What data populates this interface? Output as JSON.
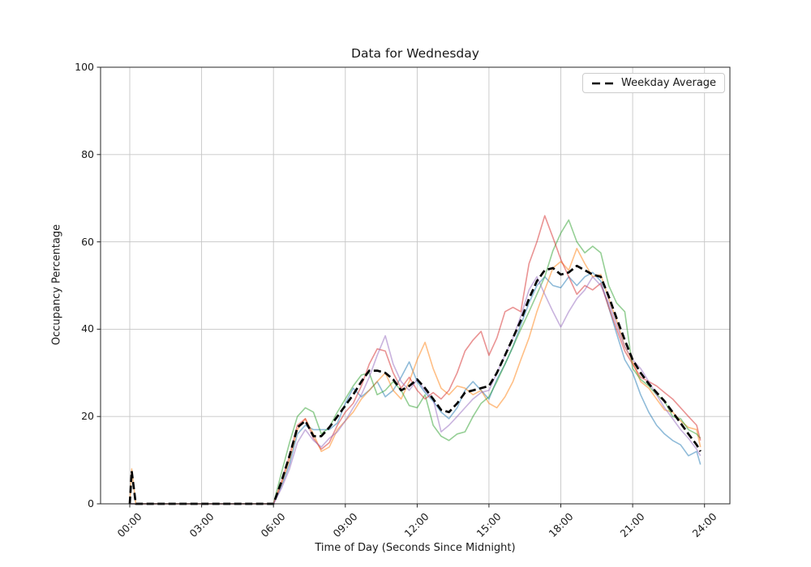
{
  "figure": {
    "background_color": "#ffffff",
    "text_color": "#1a1a1a",
    "grid_color": "#c6c6c6",
    "spine_color": "#262626"
  },
  "chart_data": {
    "type": "line",
    "title": "Data for Wednesday",
    "xlabel": "Time of Day (Seconds Since Midnight)",
    "ylabel": "Occupancy Percentage",
    "grid": true,
    "legend_position": "upper right",
    "legend_label": "Weekday Average",
    "xlim_hours": [
      -1.22,
      25.06
    ],
    "ylim": [
      0,
      100
    ],
    "y_ticks": [
      0,
      20,
      40,
      60,
      80,
      100
    ],
    "x_ticks": [
      {
        "hour": 0,
        "label": "00:00"
      },
      {
        "hour": 3,
        "label": "03:00"
      },
      {
        "hour": 6,
        "label": "06:00"
      },
      {
        "hour": 9,
        "label": "09:00"
      },
      {
        "hour": 12,
        "label": "12:00"
      },
      {
        "hour": 15,
        "label": "15:00"
      },
      {
        "hour": 18,
        "label": "18:00"
      },
      {
        "hour": 21,
        "label": "21:00"
      },
      {
        "hour": 24,
        "label": "24:00"
      }
    ],
    "x_hours": [
      0,
      0.08,
      0.25,
      3,
      6,
      6.33,
      6.67,
      7,
      7.33,
      7.67,
      8,
      8.33,
      8.67,
      9,
      9.33,
      9.67,
      10,
      10.33,
      10.67,
      11,
      11.33,
      11.67,
      12,
      12.33,
      12.67,
      13,
      13.33,
      13.67,
      14,
      14.33,
      14.67,
      15,
      15.33,
      15.67,
      16,
      16.33,
      16.67,
      17,
      17.33,
      17.67,
      18,
      18.33,
      18.67,
      19,
      19.33,
      19.67,
      20,
      20.33,
      20.67,
      21,
      21.33,
      21.67,
      22,
      22.33,
      22.67,
      23,
      23.33,
      23.67,
      23.83
    ],
    "series": [
      {
        "name": "series-1",
        "color": "#1f77b4",
        "opacity": 0.5,
        "width": 1.6,
        "dash": null,
        "y": [
          0,
          0,
          0,
          0,
          0,
          4,
          9,
          16,
          18,
          17,
          17,
          17,
          18.5,
          23,
          26.5,
          24.5,
          26,
          28,
          24.5,
          26,
          29,
          32.5,
          28,
          25.5,
          23.5,
          21,
          19.5,
          22,
          26,
          28,
          26,
          24,
          28.5,
          32,
          36,
          41,
          46,
          50,
          52,
          50,
          49.5,
          52,
          50,
          52,
          53,
          51,
          45,
          39,
          33,
          30,
          25,
          21,
          18,
          16,
          14.5,
          13.5,
          11,
          12,
          9
        ]
      },
      {
        "name": "series-2",
        "color": "#ff7f0e",
        "opacity": 0.5,
        "width": 1.6,
        "dash": null,
        "y": [
          0,
          8,
          0,
          0,
          0,
          4.5,
          10,
          17,
          19.5,
          16,
          12,
          13,
          17,
          19,
          21,
          24,
          26,
          28,
          30,
          26,
          24,
          28,
          33,
          37,
          31,
          26.5,
          25,
          27,
          26.5,
          25,
          26,
          23,
          22,
          24.5,
          28,
          33,
          38,
          44,
          49,
          54,
          55.5,
          53.5,
          58.5,
          55,
          52,
          52.5,
          47,
          42,
          36,
          32.5,
          28,
          26.5,
          24,
          21.5,
          21,
          19,
          17.5,
          17,
          13
        ]
      },
      {
        "name": "series-3",
        "color": "#2ca02c",
        "opacity": 0.5,
        "width": 1.6,
        "dash": null,
        "y": [
          0,
          0,
          0,
          0,
          0,
          7,
          14,
          20,
          22,
          21,
          16,
          17.5,
          21,
          24,
          27,
          29.5,
          30,
          25,
          26,
          28,
          26,
          22.5,
          22,
          25,
          18,
          15.5,
          14.5,
          16,
          16.5,
          20,
          23,
          24.5,
          28,
          32,
          36,
          40,
          44,
          48,
          52,
          58,
          62,
          65,
          60,
          57.5,
          59,
          57.5,
          50,
          46,
          44,
          31,
          28.5,
          27,
          25,
          23.5,
          20,
          19.5,
          17,
          16,
          15
        ]
      },
      {
        "name": "series-4",
        "color": "#d62728",
        "opacity": 0.5,
        "width": 1.6,
        "dash": null,
        "y": [
          0,
          0,
          0,
          0,
          0,
          5,
          11,
          18,
          19.5,
          15,
          12.5,
          14,
          18,
          21,
          23,
          27,
          32,
          35.5,
          35,
          30,
          26.5,
          29,
          26,
          24,
          25.5,
          24,
          26,
          30,
          35,
          37.5,
          39.5,
          34,
          38,
          44,
          45,
          44,
          55,
          60,
          66,
          61,
          56,
          52,
          48,
          50,
          49,
          50.5,
          45,
          40,
          35,
          32,
          29,
          28,
          27,
          25.5,
          24,
          22,
          20,
          18,
          14.5
        ]
      },
      {
        "name": "series-5",
        "color": "#9467bd",
        "opacity": 0.5,
        "width": 1.6,
        "dash": null,
        "y": [
          0,
          0,
          0,
          0,
          0,
          3.5,
          8,
          14,
          17,
          14.5,
          13,
          15,
          16.5,
          19,
          22,
          25,
          29,
          34,
          38.5,
          32,
          28,
          26,
          28.5,
          26,
          24,
          16.5,
          18,
          20,
          22,
          24,
          25.5,
          26,
          30,
          34,
          38,
          43,
          49,
          52,
          48,
          44,
          40.5,
          44,
          47,
          49,
          52,
          50,
          46,
          41,
          36,
          33,
          31,
          28,
          25,
          22,
          19.5,
          17,
          15,
          12.5,
          11
        ]
      },
      {
        "name": "Weekday Average",
        "color": "#000000",
        "opacity": 1,
        "width": 2.7,
        "dash": "9 4.5",
        "y": [
          0,
          7.5,
          0,
          0,
          0,
          5,
          11,
          17.5,
          19,
          15.5,
          15.5,
          17.5,
          20,
          22.5,
          25,
          28,
          30.5,
          30.5,
          30,
          28.5,
          26,
          27,
          28.5,
          26.5,
          24,
          21.5,
          21,
          23,
          25.5,
          26,
          26.5,
          27,
          30,
          34,
          38,
          42,
          47,
          51,
          53.5,
          54,
          52.5,
          53,
          54.5,
          53.5,
          52.5,
          52,
          47.5,
          42.5,
          37.5,
          33,
          30,
          27.5,
          25.5,
          23.5,
          21,
          18.5,
          16,
          13.5,
          12
        ]
      }
    ]
  }
}
